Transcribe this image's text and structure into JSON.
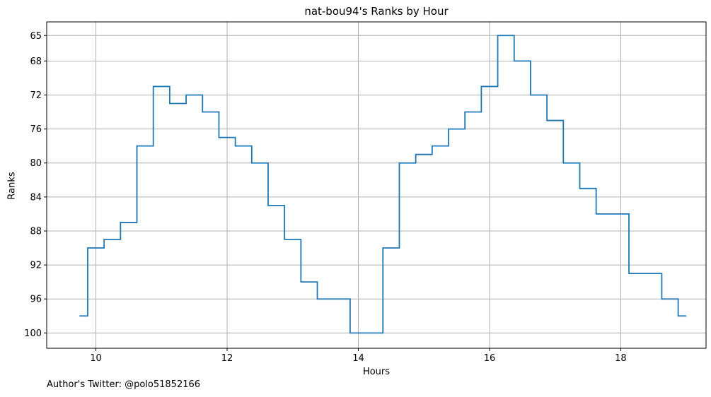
{
  "title": "nat-bou94's Ranks by Hour",
  "xlabel": "Hours",
  "ylabel": "Ranks",
  "footer": "Author's Twitter: @polo51852166",
  "colors": {
    "line": "#1f77b4",
    "grid": "#b0b0b0",
    "axes": "#000000"
  },
  "chart_data": {
    "type": "line",
    "step": "mid",
    "title": "nat-bou94's Ranks by Hour",
    "xlabel": "Hours",
    "ylabel": "Ranks",
    "xlim": [
      9.25,
      19.3
    ],
    "ylim": [
      101.8,
      63.4
    ],
    "y_inverted": true,
    "grid": true,
    "xticks": [
      10,
      12,
      14,
      16,
      18
    ],
    "yticks": [
      65,
      68,
      72,
      76,
      80,
      84,
      88,
      92,
      96,
      100
    ],
    "series": [
      {
        "x": [
          9.75,
          10.0,
          10.25,
          10.5,
          10.75,
          11.0,
          11.25,
          11.5,
          11.75,
          12.0,
          12.25,
          12.5,
          12.75,
          13.0,
          13.25,
          13.5,
          13.75,
          14.0,
          14.25,
          14.5,
          14.75,
          15.0,
          15.25,
          15.5,
          15.75,
          16.0,
          16.25,
          16.5,
          16.75,
          17.0,
          17.25,
          17.5,
          17.75,
          18.0,
          18.25,
          18.5,
          18.75,
          19.0
        ],
        "y": [
          98,
          90,
          89,
          87,
          78,
          71,
          73,
          72,
          74,
          77,
          78,
          80,
          85,
          89,
          94,
          96,
          96,
          100,
          100,
          90,
          80,
          79,
          78,
          76,
          74,
          71,
          65,
          68,
          72,
          75,
          80,
          83,
          86,
          86,
          93,
          93,
          96,
          98
        ]
      }
    ]
  }
}
